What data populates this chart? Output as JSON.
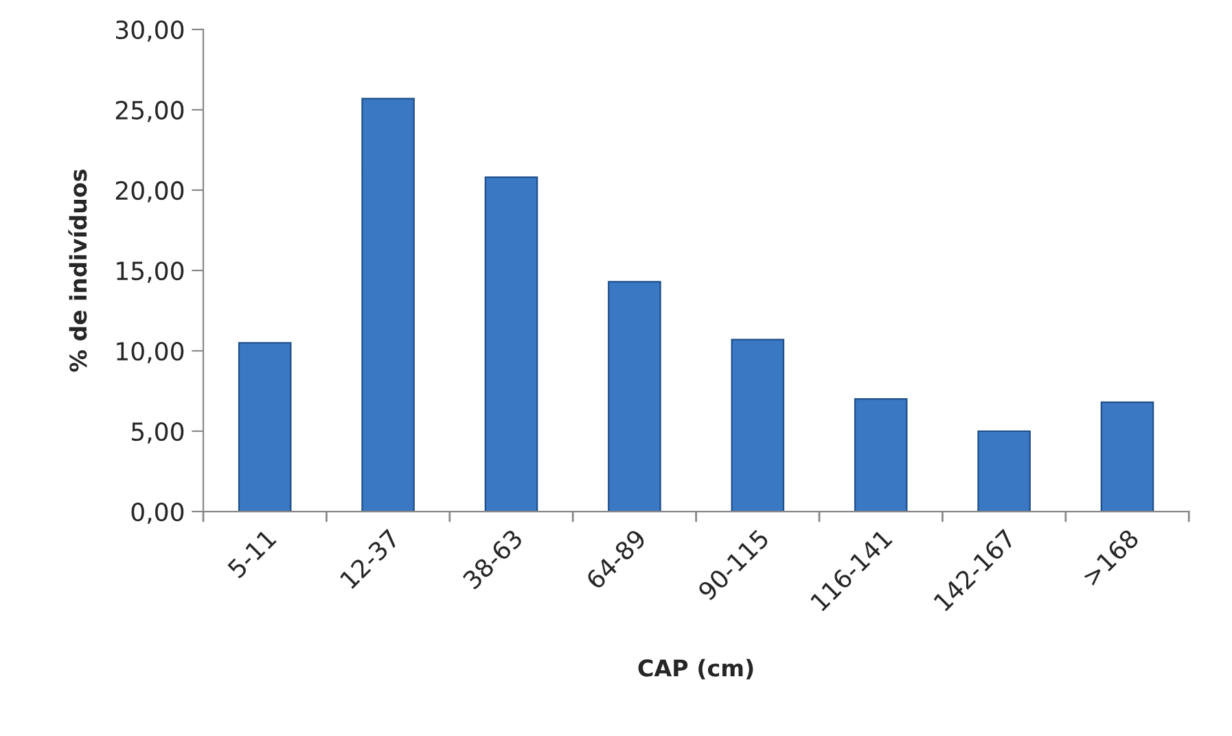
{
  "chart_data": {
    "type": "bar",
    "xlabel": "CAP (cm)",
    "ylabel": "% de indivíduos",
    "categories": [
      "5-11",
      "12-37",
      "38-63",
      "64-89",
      "90-115",
      "116-141",
      "142-167",
      ">168"
    ],
    "values": [
      10.5,
      25.7,
      20.8,
      14.3,
      10.7,
      7.0,
      5.0,
      6.8
    ],
    "color": "#3a78c4",
    "ylim": [
      0,
      30
    ],
    "yticks": [
      {
        "value": 0,
        "label": "0,00"
      },
      {
        "value": 5,
        "label": "5,00"
      },
      {
        "value": 10,
        "label": "10,00"
      },
      {
        "value": 15,
        "label": "15,00"
      },
      {
        "value": 20,
        "label": "20,00"
      },
      {
        "value": 25,
        "label": "25,00"
      },
      {
        "value": 30,
        "label": "30,00"
      }
    ],
    "grid": false
  }
}
